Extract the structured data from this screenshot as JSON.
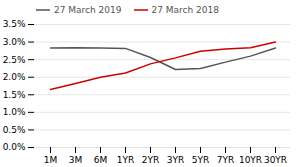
{
  "chart_data": {
    "type": "line",
    "categories": [
      "1M",
      "3M",
      "6M",
      "1YR",
      "2YR",
      "3YR",
      "5YR",
      "7YR",
      "10YR",
      "30YR"
    ],
    "series": [
      {
        "name": "27 March 2019",
        "color": "#555555",
        "values": [
          2.83,
          2.84,
          2.83,
          2.82,
          2.56,
          2.22,
          2.25,
          2.43,
          2.6,
          2.83
        ]
      },
      {
        "name": "27 March 2018",
        "color": "#cc0000",
        "values": [
          1.65,
          1.82,
          2.0,
          2.12,
          2.38,
          2.55,
          2.74,
          2.8,
          2.84,
          3.0
        ]
      }
    ],
    "ylim": [
      0.0,
      3.5
    ],
    "yticks": [
      {
        "value": 0.0,
        "label": "0.0%"
      },
      {
        "value": 0.5,
        "label": "0.5%"
      },
      {
        "value": 1.0,
        "label": "1.0%"
      },
      {
        "value": 1.5,
        "label": "1.5%"
      },
      {
        "value": 2.0,
        "label": "2.0%"
      },
      {
        "value": 2.5,
        "label": "2.5%"
      },
      {
        "value": 3.0,
        "label": "3.0%"
      },
      {
        "value": 3.5,
        "label": "3.5%"
      }
    ],
    "grid": true,
    "legend": "upper left"
  }
}
